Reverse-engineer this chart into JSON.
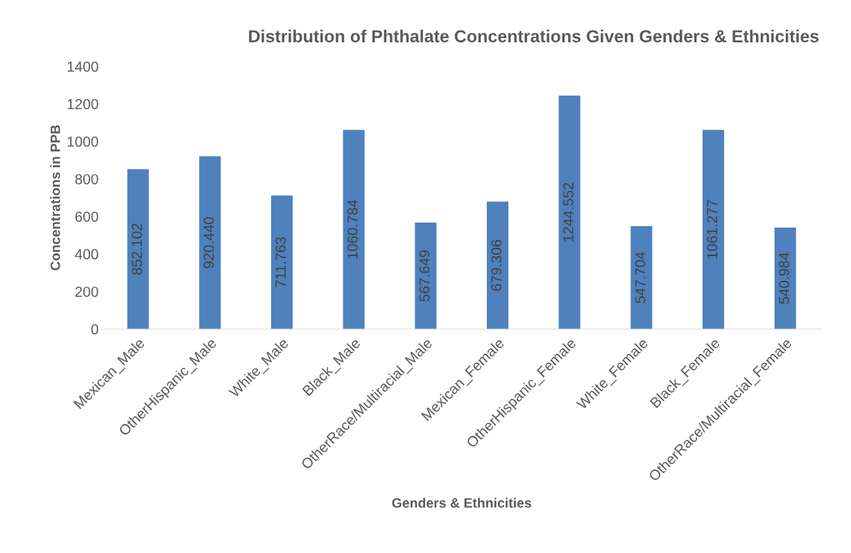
{
  "chart_data": {
    "type": "bar",
    "title": "Distribution of Phthalate Concentrations Given Genders & Ethnicities",
    "xlabel": "Genders & Ethnicities",
    "ylabel": "Concentrations in PPB",
    "categories": [
      "Mexican_Male",
      "OtherHispanic_Male",
      "White_Male",
      "Black_Male",
      "OtherRace/Multiracial_Male",
      "Mexican_Female",
      "OtherHispanic_Female",
      "White_Female",
      "Black_Female",
      "OtherRace/Multiracial_Female"
    ],
    "values": [
      852.102,
      920.44,
      711.763,
      1060.784,
      567.649,
      679.306,
      1244.552,
      547.704,
      1061.277,
      540.984
    ],
    "value_labels": [
      "852.102",
      "920.440",
      "711.763",
      "1060.784",
      "567.649",
      "679.306",
      "1244.552",
      "547.704",
      "1061.277",
      "540.984"
    ],
    "color": "#4f81bd",
    "ylim": [
      0,
      1400
    ],
    "yticks": [
      0,
      200,
      400,
      600,
      800,
      1000,
      1200,
      1400
    ],
    "grid": false,
    "legend": false
  }
}
